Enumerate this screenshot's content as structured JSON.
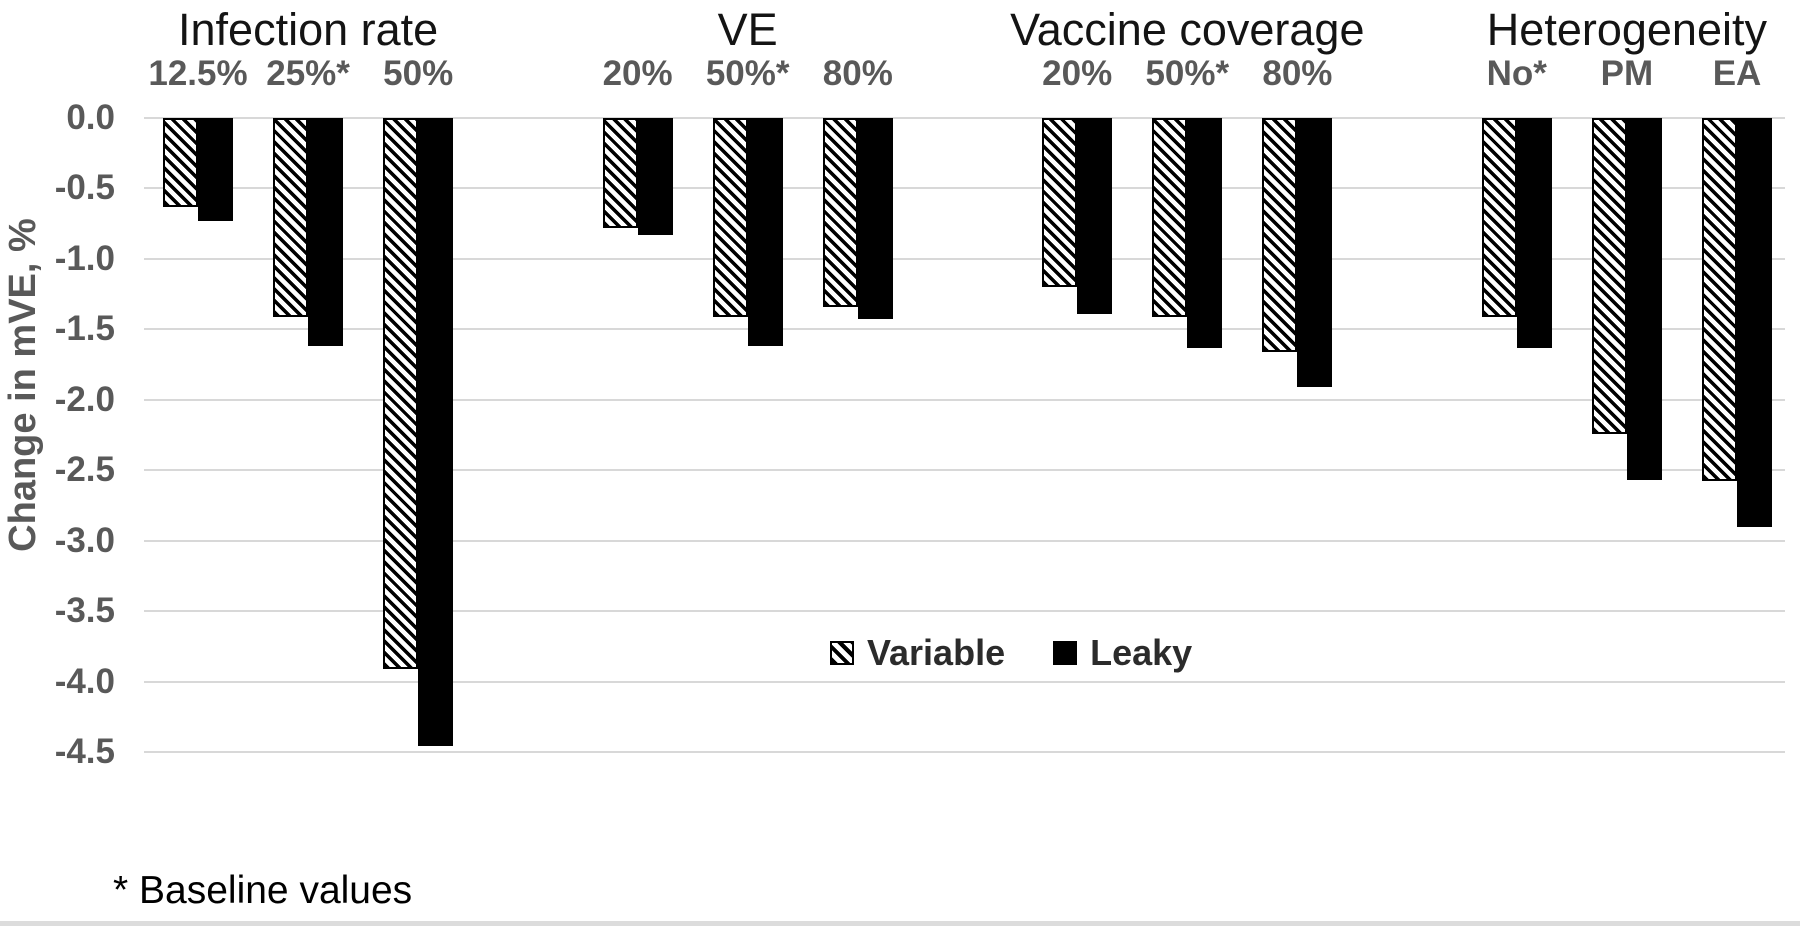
{
  "figure": {
    "y_axis_title": "Change in mVE, %",
    "y_tick_labels": [
      "0.0",
      "-0.5",
      "-1.0",
      "-1.5",
      "-2.0",
      "-2.5",
      "-3.0",
      "-3.5",
      "-4.0",
      "-4.5"
    ],
    "legend": {
      "variable_label": "Variable",
      "leaky_label": "Leaky"
    },
    "footnote": "* Baseline values",
    "colors": {
      "bar_fill": "#000000",
      "gridline": "#d8d8d8",
      "axis_text": "#595959",
      "group_title_text": "#141414"
    }
  },
  "chart_data": {
    "type": "bar",
    "orientation": "vertical",
    "ylabel": "Change in mVE, %",
    "ylim": [
      -4.5,
      0
    ],
    "ytick_step": 0.5,
    "grid": true,
    "legend_position": "inside-plot-lower-center",
    "legend_entries": [
      {
        "name": "Variable",
        "style": "hatched-diagonal"
      },
      {
        "name": "Leaky",
        "style": "solid-black"
      }
    ],
    "groups": [
      {
        "title": "Infection rate",
        "categories": [
          "12.5%",
          "25%*",
          "50%"
        ],
        "series": [
          {
            "name": "Variable",
            "values": [
              -0.63,
              -1.41,
              -3.91
            ]
          },
          {
            "name": "Leaky",
            "values": [
              -0.73,
              -1.62,
              -4.46
            ]
          }
        ]
      },
      {
        "title": "VE",
        "categories": [
          "20%",
          "50%*",
          "80%"
        ],
        "series": [
          {
            "name": "Variable",
            "values": [
              -0.78,
              -1.41,
              -1.34
            ]
          },
          {
            "name": "Leaky",
            "values": [
              -0.83,
              -1.62,
              -1.43
            ]
          }
        ]
      },
      {
        "title": "Vaccine coverage",
        "categories": [
          "20%",
          "50%*",
          "80%"
        ],
        "series": [
          {
            "name": "Variable",
            "values": [
              -1.2,
              -1.41,
              -1.66
            ]
          },
          {
            "name": "Leaky",
            "values": [
              -1.39,
              -1.63,
              -1.91
            ]
          }
        ]
      },
      {
        "title": "Heterogeneity",
        "categories": [
          "No*",
          "PM",
          "EA"
        ],
        "series": [
          {
            "name": "Variable",
            "values": [
              -1.41,
              -2.24,
              -2.58
            ]
          },
          {
            "name": "Leaky",
            "values": [
              -1.63,
              -2.57,
              -2.9
            ]
          }
        ]
      }
    ],
    "footnote": "* Baseline values"
  }
}
